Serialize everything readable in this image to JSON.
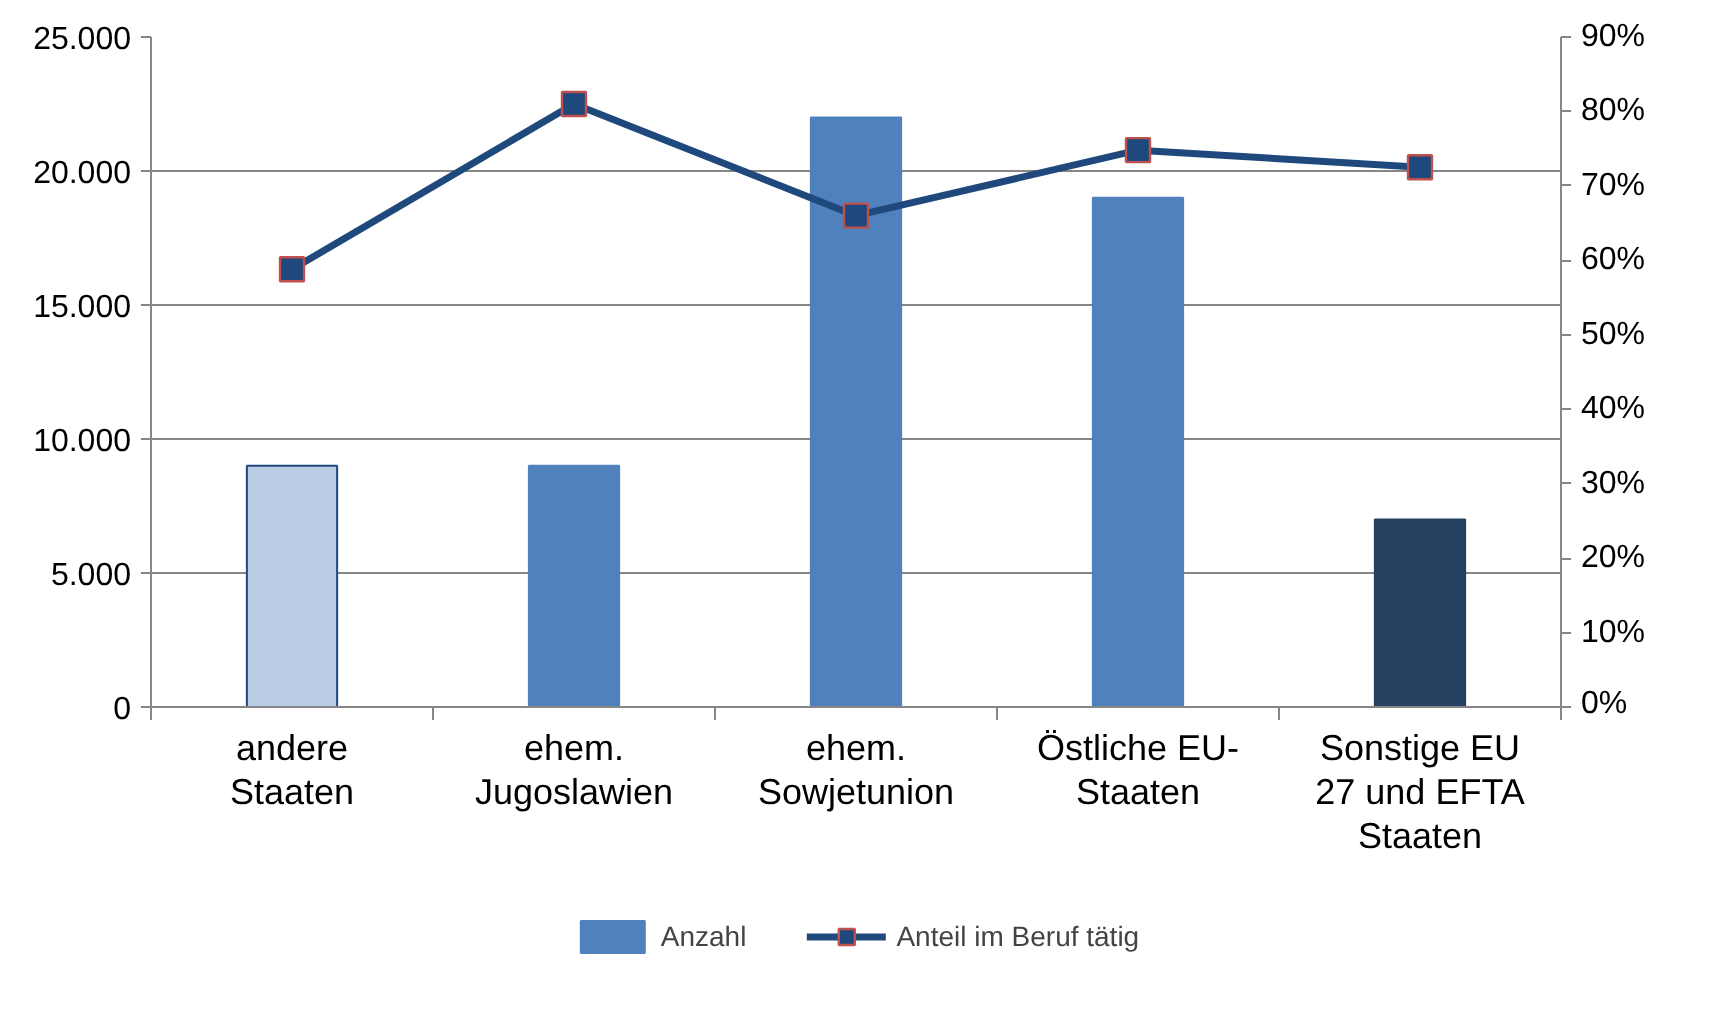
{
  "chart_data": {
    "type": "bar",
    "categories": [
      "andere Staaten",
      "ehem. Jugoslawien",
      "ehem. Sowjetunion",
      "Östliche EU-Staaten",
      "Sonstige EU 27 und EFTA Staaten"
    ],
    "series": [
      {
        "name": "Anzahl",
        "color": "#4f81bd",
        "colors": [
          "#b9cde5",
          "#4f81bd",
          "#4f81bd",
          "#4f81bd",
          "#254061"
        ],
        "values": [
          9000,
          9000,
          22000,
          19000,
          7000
        ]
      },
      {
        "name": "Anteil im Beruf tätig",
        "type": "line",
        "axis": "y2",
        "color": "#1f497d",
        "marker": "square",
        "line_style": "solid",
        "values": [
          58.8,
          81,
          66,
          74.8,
          72.5
        ]
      }
    ],
    "ylim": [
      0,
      25000
    ],
    "yticks": [
      {
        "value": 0,
        "label": "0"
      },
      {
        "value": 5000,
        "label": "5.000"
      },
      {
        "value": 10000,
        "label": "10.000"
      },
      {
        "value": 15000,
        "label": "15.000"
      },
      {
        "value": 20000,
        "label": "20.000"
      },
      {
        "value": 25000,
        "label": "25.000"
      }
    ],
    "y2lim": [
      0,
      90
    ],
    "y2ticks": [
      {
        "value": 0,
        "label": "0%"
      },
      {
        "value": 10,
        "label": "10%"
      },
      {
        "value": 20,
        "label": "20%"
      },
      {
        "value": 30,
        "label": "30%"
      },
      {
        "value": 40,
        "label": "40%"
      },
      {
        "value": 50,
        "label": "50%"
      },
      {
        "value": 60,
        "label": "60%"
      },
      {
        "value": 70,
        "label": "70%"
      },
      {
        "value": 80,
        "label": "80%"
      },
      {
        "value": 90,
        "label": "90%"
      }
    ],
    "grid": "y",
    "legend": "bottom"
  }
}
